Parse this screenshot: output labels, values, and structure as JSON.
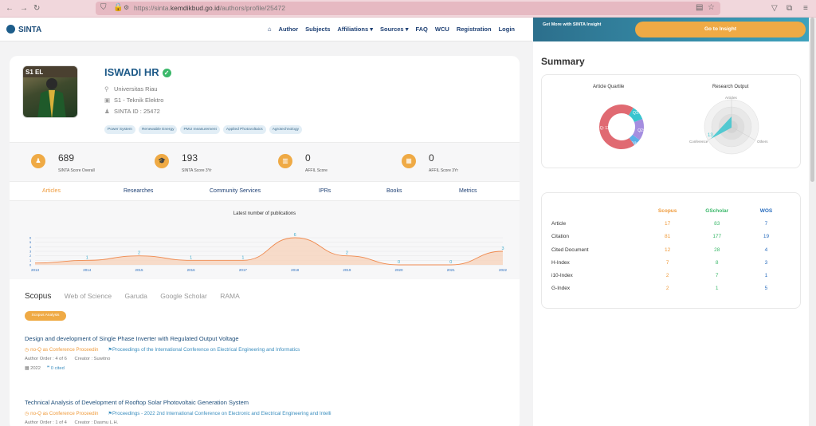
{
  "browser": {
    "url_prefix": "https://sinta.",
    "url_domain": "kemdikbud.go.id",
    "url_path": "/authors/profile/25472"
  },
  "nav": {
    "logo": "SINTA",
    "links": [
      "Author",
      "Subjects",
      "Affiliations",
      "Sources",
      "FAQ",
      "WCU",
      "Registration",
      "Login"
    ]
  },
  "insight": {
    "text": "Get More with SINTA Insight",
    "button": "Go to Insight"
  },
  "profile": {
    "name": "ISWADI HR",
    "university": "Universitas Riau",
    "department": "S1 - Teknik Elektro",
    "sinta_id": "SINTA ID : 25472",
    "avatar_caption": "S1 EL",
    "tags": [
      "Power System",
      "Renewable Energy",
      "PMU measurement",
      "Applied Photovoltaics",
      "Agrotechnology"
    ]
  },
  "scores": [
    {
      "value": "689",
      "label": "SINTA Score Overall"
    },
    {
      "value": "193",
      "label": "SINTA Score 3Yr"
    },
    {
      "value": "0",
      "label": "AFFIL Score"
    },
    {
      "value": "0",
      "label": "AFFIL Score 3Yr"
    }
  ],
  "tabs": [
    "Articles",
    "Researches",
    "Community Services",
    "IPRs",
    "Books",
    "Metrics"
  ],
  "chart_data": {
    "type": "area",
    "title": "Latest number of publications",
    "x": [
      "2013",
      "2014",
      "2015",
      "2016",
      "2017",
      "2018",
      "2019",
      "2020",
      "2021",
      "2022"
    ],
    "values": [
      null,
      1,
      2,
      1,
      1,
      6,
      2,
      0,
      0,
      3
    ],
    "ylim": [
      0,
      6
    ],
    "yticks": [
      "0",
      "1",
      "2",
      "3",
      "4",
      "5",
      "6"
    ],
    "grid": true
  },
  "source_tabs": [
    "Scopus",
    "Web of Science",
    "Garuda",
    "Google Scholar",
    "RAMA"
  ],
  "scopus_button": "Scopus Analysis",
  "articles": [
    {
      "title": "Design and development of Single Phase Inverter with Regulated Output Voltage",
      "type": "no-Q as Conference Proceedin",
      "publication": "Proceedings of the International Conference on Electrical Engineering and Informatics",
      "order": "Author Order : 4 of 6",
      "creator": "Creator : Suwitno",
      "year": "2022",
      "cited": "0 cited"
    },
    {
      "title": "Technical Analysis of Development of Rooftop Solar Photovoltaic Generation System",
      "type": "no-Q as Conference Proceedin",
      "publication": "Proceedings - 2022 2nd International Conference on Electronic and Electrical Engineering and Intelli",
      "order": "Author Order : 1 of 4",
      "creator": "Creator : Dasmu L.H.",
      "year": "",
      "cited": ""
    }
  ],
  "summary": {
    "title": "Summary",
    "quartile_title": "Article Quartile",
    "quartile_labels": [
      "Q1: 2",
      "Q2: 3",
      "Q3: 1",
      "no-Q: 13"
    ],
    "quartile_values": [
      2,
      3,
      1,
      13
    ],
    "quartile_colors": [
      "#39c5cf",
      "#a58ee0",
      "#5ab0e8",
      "#e06a72"
    ],
    "research_title": "Research Output",
    "radar_labels": [
      "Articles",
      "Conference",
      "Others"
    ],
    "radar_value_label": "13",
    "table": {
      "headers": [
        "",
        "Scopus",
        "GScholar",
        "WOS"
      ],
      "rows": [
        [
          "Article",
          "17",
          "83",
          "7"
        ],
        [
          "Citation",
          "81",
          "177",
          "19"
        ],
        [
          "Cited Document",
          "12",
          "28",
          "4"
        ],
        [
          "H-Index",
          "7",
          "8",
          "3"
        ],
        [
          "i10-Index",
          "2",
          "7",
          "1"
        ],
        [
          "G-Index",
          "2",
          "1",
          "5"
        ]
      ]
    }
  }
}
